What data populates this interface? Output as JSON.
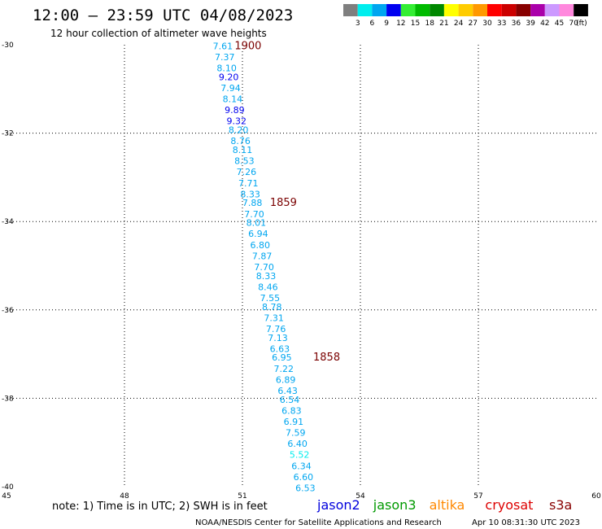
{
  "header": {
    "title": "12:00 – 23:59 UTC 04/08/2023",
    "subtitle": "12 hour collection of altimeter wave heights"
  },
  "colorbar": {
    "labels": [
      "3",
      "6",
      "9",
      "12",
      "15",
      "18",
      "21",
      "24",
      "27",
      "30",
      "33",
      "36",
      "39",
      "42",
      "45",
      "70",
      "(ft)"
    ],
    "colors": [
      "#7f7f7f",
      "#00eeee",
      "#00a6f0",
      "#0000f0",
      "#33ee33",
      "#00bb00",
      "#008800",
      "#ffff00",
      "#ffcc00",
      "#ff9900",
      "#ff0000",
      "#cc0000",
      "#880000",
      "#aa00aa",
      "#cc99ff",
      "#ff88dd",
      "#000000"
    ]
  },
  "chart_data": {
    "type": "scatter",
    "xlim": [
      45,
      60
    ],
    "ylim": [
      -40,
      -30
    ],
    "x_ticks": [
      "45",
      "48",
      "51",
      "54",
      "57",
      "60"
    ],
    "y_ticks": [
      "-30",
      "-32",
      "-34",
      "-36",
      "-38",
      "-40"
    ],
    "grid": true,
    "color_scale_ft": [
      3,
      6,
      9,
      12,
      15,
      18,
      21,
      24,
      27,
      30,
      33,
      36,
      39,
      42,
      45,
      70
    ],
    "points": [
      {
        "lon": 50.5,
        "lat": -30.1,
        "swh": "7.61"
      },
      {
        "lon": 50.55,
        "lat": -30.35,
        "swh": "7.37"
      },
      {
        "lon": 50.6,
        "lat": -30.6,
        "swh": "8.10"
      },
      {
        "lon": 50.65,
        "lat": -30.8,
        "swh": "9.20"
      },
      {
        "lon": 50.7,
        "lat": -31.05,
        "swh": "7.94"
      },
      {
        "lon": 50.75,
        "lat": -31.3,
        "swh": "8.14"
      },
      {
        "lon": 50.8,
        "lat": -31.55,
        "swh": "9.89"
      },
      {
        "lon": 50.85,
        "lat": -31.8,
        "swh": "9.32"
      },
      {
        "lon": 50.9,
        "lat": -32.0,
        "swh": "8.20"
      },
      {
        "lon": 50.95,
        "lat": -32.25,
        "swh": "8.76"
      },
      {
        "lon": 51.0,
        "lat": -32.45,
        "swh": "8.11"
      },
      {
        "lon": 51.05,
        "lat": -32.7,
        "swh": "8.53"
      },
      {
        "lon": 51.1,
        "lat": -32.95,
        "swh": "7.26"
      },
      {
        "lon": 51.15,
        "lat": -33.2,
        "swh": "7.71"
      },
      {
        "lon": 51.2,
        "lat": -33.45,
        "swh": "8.33"
      },
      {
        "lon": 51.25,
        "lat": -33.65,
        "swh": "7.88"
      },
      {
        "lon": 51.3,
        "lat": -33.9,
        "swh": "7.70"
      },
      {
        "lon": 51.35,
        "lat": -34.1,
        "swh": "8.01"
      },
      {
        "lon": 51.4,
        "lat": -34.35,
        "swh": "6.94"
      },
      {
        "lon": 51.45,
        "lat": -34.6,
        "swh": "6.80"
      },
      {
        "lon": 51.5,
        "lat": -34.85,
        "swh": "7.87"
      },
      {
        "lon": 51.55,
        "lat": -35.1,
        "swh": "7.70"
      },
      {
        "lon": 51.6,
        "lat": -35.3,
        "swh": "8.33"
      },
      {
        "lon": 51.65,
        "lat": -35.55,
        "swh": "8.46"
      },
      {
        "lon": 51.7,
        "lat": -35.8,
        "swh": "7.55"
      },
      {
        "lon": 51.75,
        "lat": -36.0,
        "swh": "8.78"
      },
      {
        "lon": 51.8,
        "lat": -36.25,
        "swh": "7.31"
      },
      {
        "lon": 51.85,
        "lat": -36.5,
        "swh": "7.76"
      },
      {
        "lon": 51.9,
        "lat": -36.7,
        "swh": "7.13"
      },
      {
        "lon": 51.95,
        "lat": -36.95,
        "swh": "6.63"
      },
      {
        "lon": 52.0,
        "lat": -37.15,
        "swh": "6.95"
      },
      {
        "lon": 52.05,
        "lat": -37.4,
        "swh": "7.22"
      },
      {
        "lon": 52.1,
        "lat": -37.65,
        "swh": "6.89"
      },
      {
        "lon": 52.15,
        "lat": -37.9,
        "swh": "6.43"
      },
      {
        "lon": 52.2,
        "lat": -38.1,
        "swh": "6.54"
      },
      {
        "lon": 52.25,
        "lat": -38.35,
        "swh": "6.83"
      },
      {
        "lon": 52.3,
        "lat": -38.6,
        "swh": "6.91"
      },
      {
        "lon": 52.35,
        "lat": -38.85,
        "swh": "7.59"
      },
      {
        "lon": 52.4,
        "lat": -39.1,
        "swh": "6.40"
      },
      {
        "lon": 52.45,
        "lat": -39.35,
        "swh": "5.52"
      },
      {
        "lon": 52.5,
        "lat": -39.6,
        "swh": "6.34"
      },
      {
        "lon": 52.55,
        "lat": -39.85,
        "swh": "6.60"
      },
      {
        "lon": 52.6,
        "lat": -40.1,
        "swh": "6.53"
      }
    ],
    "time_labels": [
      {
        "lon": 50.8,
        "lat": -30.1,
        "text": "1900"
      },
      {
        "lon": 51.7,
        "lat": -33.65,
        "text": "1859"
      },
      {
        "lon": 52.8,
        "lat": -37.15,
        "text": "1858"
      }
    ]
  },
  "footer": {
    "note": "note:  1) Time is in UTC;  2) SWH is in feet",
    "satellites": [
      {
        "name": "jason2",
        "color": "#0000dd"
      },
      {
        "name": "jason3",
        "color": "#009900"
      },
      {
        "name": "altika",
        "color": "#ff8800"
      },
      {
        "name": "cryosat",
        "color": "#dd0000"
      },
      {
        "name": "s3a",
        "color": "#880000"
      }
    ],
    "credit": "NOAA/NESDIS Center for Satellite Applications and Research",
    "timestamp": "Apr 10 08:31:30 UTC 2023"
  }
}
